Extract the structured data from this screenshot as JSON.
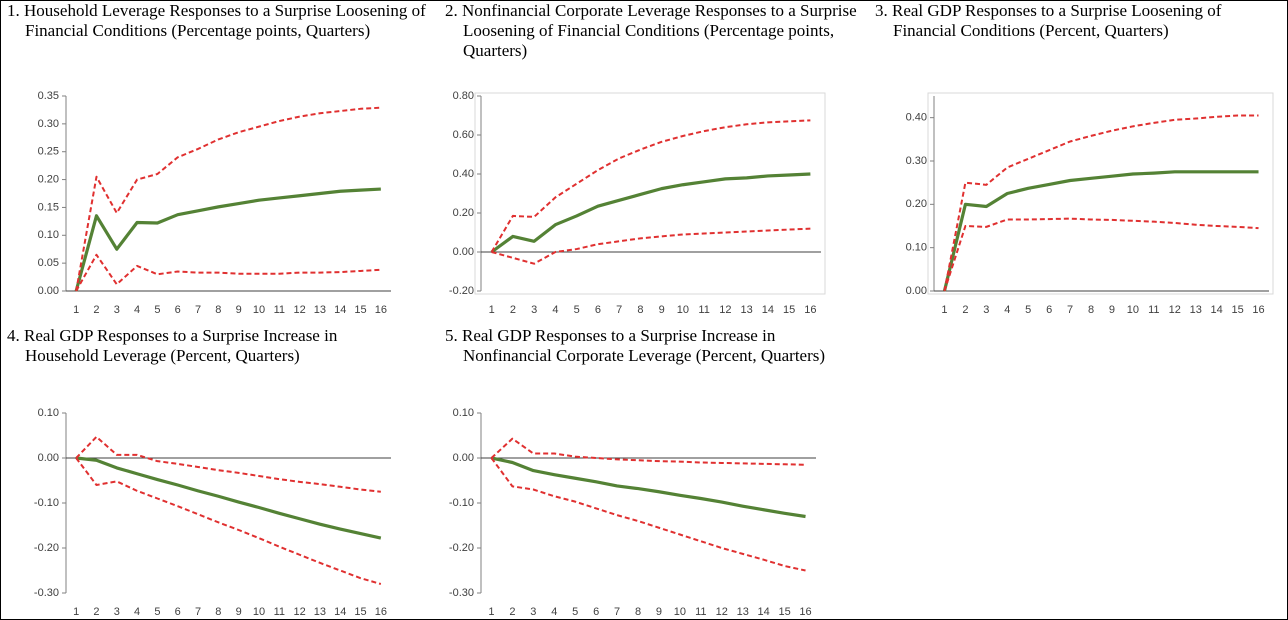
{
  "chart_data": [
    {
      "type": "line",
      "title": "1. Household Leverage Responses to a Surprise Loosening of Financial Conditions (Percentage points, Quarters)",
      "categories": [
        "1",
        "2",
        "3",
        "4",
        "5",
        "6",
        "7",
        "8",
        "9",
        "10",
        "11",
        "12",
        "13",
        "14",
        "15",
        "16"
      ],
      "ylim": [
        0,
        0.35
      ],
      "yticks": [
        {
          "value": 0,
          "label": "0.00"
        },
        {
          "value": 0.05,
          "label": "0.05"
        },
        {
          "value": 0.1,
          "label": "0.10"
        },
        {
          "value": 0.15,
          "label": "0.15"
        },
        {
          "value": 0.2,
          "label": "0.20"
        },
        {
          "value": 0.25,
          "label": "0.25"
        },
        {
          "value": 0.3,
          "label": "0.30"
        },
        {
          "value": 0.35,
          "label": "0.35"
        }
      ],
      "series": [
        {
          "color": "#548235",
          "style": "solid",
          "values": [
            0,
            0.135,
            0.075,
            0.123,
            0.122,
            0.137,
            0.144,
            0.151,
            0.157,
            0.163,
            0.167,
            0.171,
            0.175,
            0.179,
            0.181,
            0.183
          ]
        },
        {
          "color": "#e03030",
          "style": "dashed",
          "values": [
            0,
            0.205,
            0.14,
            0.2,
            0.21,
            0.24,
            0.255,
            0.272,
            0.285,
            0.295,
            0.305,
            0.313,
            0.319,
            0.323,
            0.327,
            0.329
          ]
        },
        {
          "color": "#e03030",
          "style": "dashed",
          "values": [
            0,
            0.065,
            0.012,
            0.045,
            0.03,
            0.035,
            0.033,
            0.033,
            0.031,
            0.031,
            0.031,
            0.033,
            0.033,
            0.034,
            0.036,
            0.038
          ]
        }
      ]
    },
    {
      "type": "line",
      "title": "2. Nonfinancial Corporate Leverage Responses to a Surprise Loosening of Financial Conditions (Percentage points, Quarters)",
      "categories": [
        "1",
        "2",
        "3",
        "4",
        "5",
        "6",
        "7",
        "8",
        "9",
        "10",
        "11",
        "12",
        "13",
        "14",
        "15",
        "16"
      ],
      "ylim": [
        -0.2,
        0.8
      ],
      "yticks": [
        {
          "value": -0.2,
          "label": "-0.20"
        },
        {
          "value": 0,
          "label": "0.00"
        },
        {
          "value": 0.2,
          "label": "0.20"
        },
        {
          "value": 0.4,
          "label": "0.40"
        },
        {
          "value": 0.6,
          "label": "0.60"
        },
        {
          "value": 0.8,
          "label": "0.80"
        }
      ],
      "series": [
        {
          "color": "#548235",
          "style": "solid",
          "values": [
            0,
            0.08,
            0.055,
            0.14,
            0.185,
            0.235,
            0.265,
            0.295,
            0.325,
            0.345,
            0.36,
            0.375,
            0.38,
            0.39,
            0.395,
            0.4
          ]
        },
        {
          "color": "#e03030",
          "style": "dashed",
          "values": [
            0,
            0.185,
            0.18,
            0.28,
            0.35,
            0.42,
            0.48,
            0.525,
            0.565,
            0.595,
            0.62,
            0.64,
            0.655,
            0.665,
            0.67,
            0.675
          ]
        },
        {
          "color": "#e03030",
          "style": "dashed",
          "values": [
            0,
            -0.03,
            -0.06,
            0,
            0.015,
            0.04,
            0.055,
            0.07,
            0.08,
            0.09,
            0.095,
            0.1,
            0.105,
            0.11,
            0.115,
            0.12
          ]
        }
      ]
    },
    {
      "type": "line",
      "title": "3. Real GDP Responses to a Surprise Loosening of Financial Conditions (Percent, Quarters)",
      "categories": [
        "1",
        "2",
        "3",
        "4",
        "5",
        "6",
        "7",
        "8",
        "9",
        "10",
        "11",
        "12",
        "13",
        "14",
        "15",
        "16"
      ],
      "ylim": [
        0,
        0.45
      ],
      "yticks": [
        {
          "value": 0,
          "label": "0.00"
        },
        {
          "value": 0.1,
          "label": "0.10"
        },
        {
          "value": 0.2,
          "label": "0.20"
        },
        {
          "value": 0.3,
          "label": "0.30"
        },
        {
          "value": 0.4,
          "label": "0.40"
        }
      ],
      "series": [
        {
          "color": "#548235",
          "style": "solid",
          "values": [
            0,
            0.2,
            0.195,
            0.225,
            0.237,
            0.246,
            0.255,
            0.26,
            0.265,
            0.27,
            0.272,
            0.275,
            0.275,
            0.275,
            0.275,
            0.275
          ]
        },
        {
          "color": "#e03030",
          "style": "dashed",
          "values": [
            0,
            0.25,
            0.245,
            0.285,
            0.305,
            0.325,
            0.345,
            0.358,
            0.37,
            0.38,
            0.388,
            0.395,
            0.398,
            0.402,
            0.405,
            0.405
          ]
        },
        {
          "color": "#e03030",
          "style": "dashed",
          "values": [
            0,
            0.15,
            0.148,
            0.165,
            0.165,
            0.166,
            0.167,
            0.165,
            0.164,
            0.162,
            0.16,
            0.157,
            0.153,
            0.15,
            0.148,
            0.145
          ]
        }
      ]
    },
    {
      "type": "line",
      "title": "4. Real GDP Responses to a Surprise Increase in Household Leverage (Percent, Quarters)",
      "categories": [
        "1",
        "2",
        "3",
        "4",
        "5",
        "6",
        "7",
        "8",
        "9",
        "10",
        "11",
        "12",
        "13",
        "14",
        "15",
        "16"
      ],
      "ylim": [
        -0.3,
        0.1
      ],
      "yticks": [
        {
          "value": -0.3,
          "label": "-0.30"
        },
        {
          "value": -0.2,
          "label": "-0.20"
        },
        {
          "value": -0.1,
          "label": "-0.10"
        },
        {
          "value": 0,
          "label": "0.00"
        },
        {
          "value": 0.1,
          "label": "0.10"
        }
      ],
      "series": [
        {
          "color": "#548235",
          "style": "solid",
          "values": [
            0,
            -0.005,
            -0.022,
            -0.035,
            -0.048,
            -0.06,
            -0.073,
            -0.085,
            -0.098,
            -0.11,
            -0.123,
            -0.135,
            -0.147,
            -0.158,
            -0.168,
            -0.178
          ]
        },
        {
          "color": "#e03030",
          "style": "dashed",
          "values": [
            0,
            0.047,
            0.007,
            0.007,
            -0.007,
            -0.013,
            -0.02,
            -0.027,
            -0.033,
            -0.04,
            -0.047,
            -0.053,
            -0.058,
            -0.064,
            -0.07,
            -0.075
          ]
        },
        {
          "color": "#e03030",
          "style": "dashed",
          "values": [
            0,
            -0.06,
            -0.052,
            -0.073,
            -0.09,
            -0.107,
            -0.125,
            -0.143,
            -0.16,
            -0.178,
            -0.197,
            -0.215,
            -0.233,
            -0.25,
            -0.267,
            -0.28
          ]
        }
      ]
    },
    {
      "type": "line",
      "title": "5. Real GDP Responses to a Surprise Increase in Nonfinancial Corporate Leverage (Percent, Quarters)",
      "categories": [
        "1",
        "2",
        "3",
        "4",
        "5",
        "6",
        "7",
        "8",
        "9",
        "10",
        "11",
        "12",
        "13",
        "14",
        "15",
        "16"
      ],
      "ylim": [
        -0.3,
        0.1
      ],
      "yticks": [
        {
          "value": -0.3,
          "label": "-0.30"
        },
        {
          "value": -0.2,
          "label": "-0.20"
        },
        {
          "value": -0.1,
          "label": "-0.10"
        },
        {
          "value": 0,
          "label": "0.00"
        },
        {
          "value": 0.1,
          "label": "0.10"
        }
      ],
      "series": [
        {
          "color": "#548235",
          "style": "solid",
          "values": [
            0,
            -0.01,
            -0.028,
            -0.037,
            -0.045,
            -0.053,
            -0.062,
            -0.068,
            -0.075,
            -0.083,
            -0.09,
            -0.098,
            -0.107,
            -0.115,
            -0.123,
            -0.13
          ]
        },
        {
          "color": "#e03030",
          "style": "dashed",
          "values": [
            0,
            0.043,
            0.01,
            0.01,
            0.003,
            0,
            -0.003,
            -0.005,
            -0.007,
            -0.008,
            -0.01,
            -0.011,
            -0.012,
            -0.013,
            -0.014,
            -0.015
          ]
        },
        {
          "color": "#e03030",
          "style": "dashed",
          "values": [
            0,
            -0.063,
            -0.07,
            -0.085,
            -0.097,
            -0.112,
            -0.127,
            -0.14,
            -0.155,
            -0.17,
            -0.185,
            -0.2,
            -0.213,
            -0.226,
            -0.24,
            -0.25
          ]
        }
      ]
    }
  ]
}
